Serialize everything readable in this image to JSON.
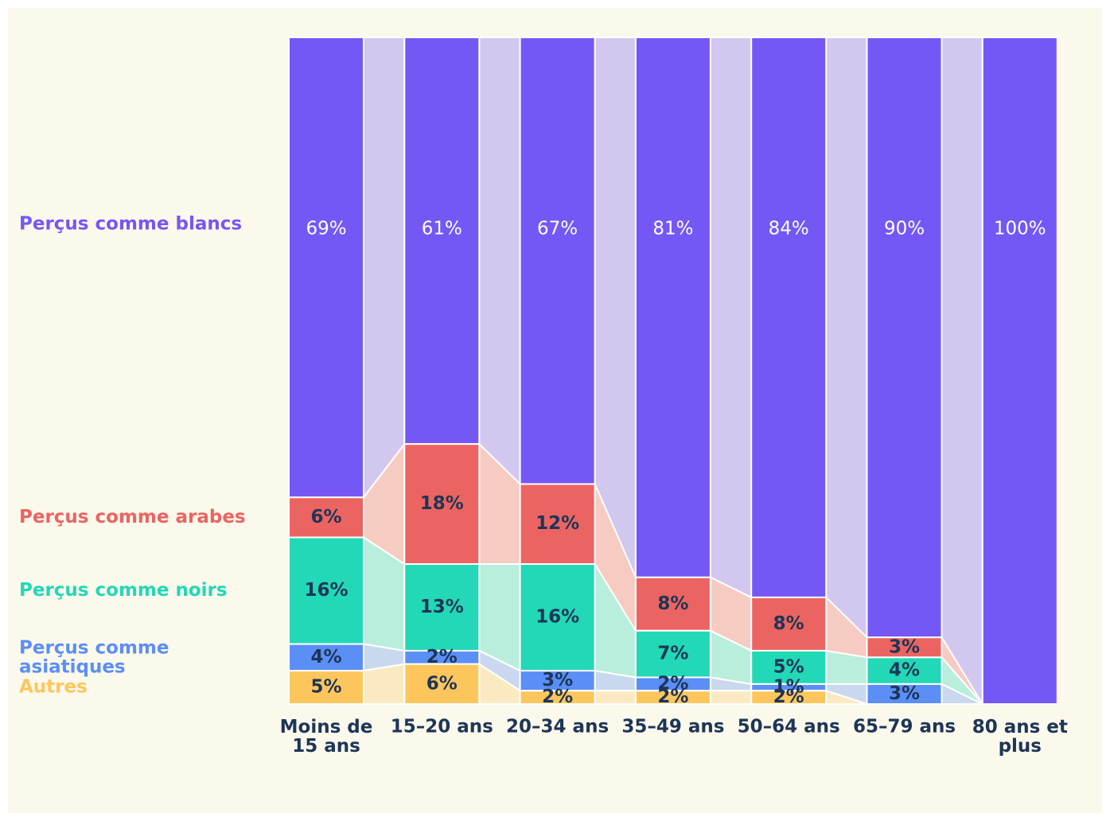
{
  "chart_data": {
    "type": "bar",
    "categories": [
      "Moins de 15 ans",
      "15–20 ans",
      "20–34 ans",
      "35–49 ans",
      "50–64 ans",
      "65–79 ans",
      "80 ans et plus"
    ],
    "ylim": [
      0,
      100
    ],
    "series": [
      {
        "name": "Perçus comme blancs",
        "color": "#7557f5",
        "values": [
          69,
          61,
          67,
          81,
          84,
          90,
          100
        ],
        "value_labels": [
          "69%",
          "61%",
          "67%",
          "81%",
          "84%",
          "90%",
          "100%"
        ]
      },
      {
        "name": "Perçus comme arabes",
        "color": "#ec6461",
        "values": [
          6,
          18,
          12,
          8,
          8,
          3,
          0
        ],
        "value_labels": [
          "6%",
          "18%",
          "12%",
          "8%",
          "8%",
          "3%",
          null
        ]
      },
      {
        "name": "Perçus comme noirs",
        "color": "#22d8b6",
        "values": [
          16,
          13,
          16,
          7,
          5,
          4,
          0
        ],
        "value_labels": [
          "16%",
          "13%",
          "16%",
          "7%",
          "5%",
          "4%",
          null
        ]
      },
      {
        "name": "Perçus comme asiatiques",
        "color": "#5b8ff5",
        "values": [
          4,
          2,
          3,
          2,
          1,
          3,
          0
        ],
        "value_labels": [
          "4%",
          "2%",
          "3%",
          "2%",
          "1%",
          "3%",
          null
        ]
      },
      {
        "name": "Autres",
        "color": "#fdc65c",
        "values": [
          5,
          6,
          2,
          2,
          2,
          0,
          0
        ],
        "value_labels": [
          "5%",
          "6%",
          "2%",
          "2%",
          "2%",
          null,
          null
        ]
      }
    ]
  }
}
